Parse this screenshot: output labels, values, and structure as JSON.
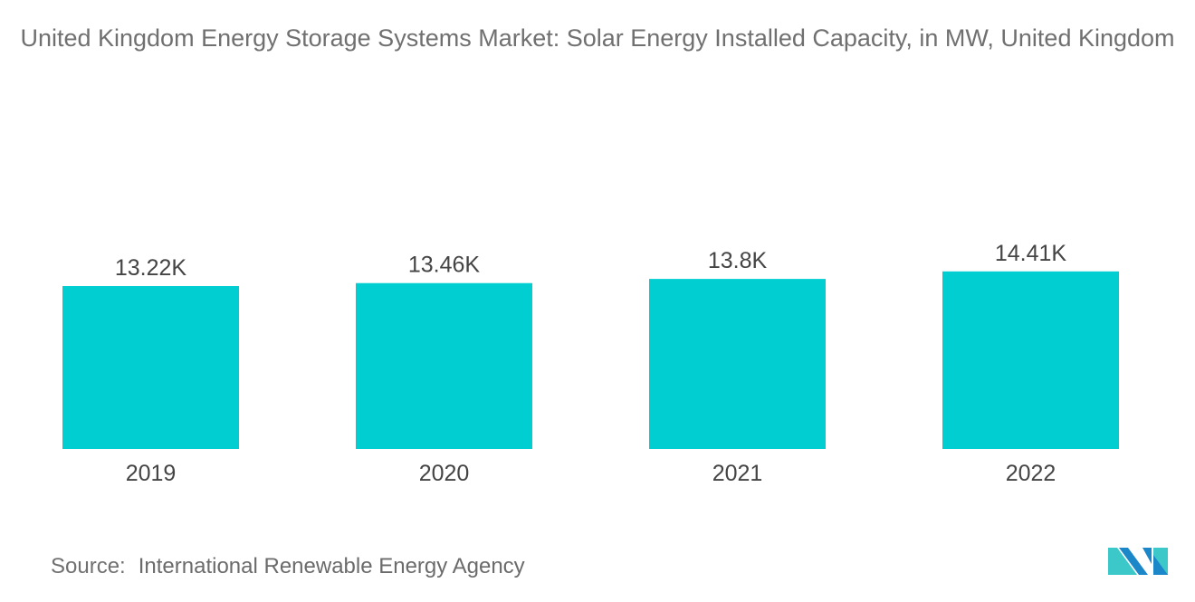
{
  "chart_data": {
    "type": "bar",
    "title": "United Kingdom Energy Storage Systems Market: Solar Energy Installed Capacity, in MW, United Kingdom",
    "categories": [
      "2019",
      "2020",
      "2021",
      "2022"
    ],
    "values": [
      13220,
      13460,
      13800,
      14410
    ],
    "data_labels": [
      "13.22K",
      "13.46K",
      "13.8K",
      "14.41K"
    ],
    "xlabel": "",
    "ylabel": "",
    "ylim": [
      0,
      16000
    ],
    "grid": false,
    "bar_color": "#00CED1"
  },
  "source": {
    "label": "Source:",
    "text": "International Renewable Energy Agency"
  },
  "logo": {
    "colors": [
      "#1B87C9",
      "#3CC8C8"
    ]
  }
}
